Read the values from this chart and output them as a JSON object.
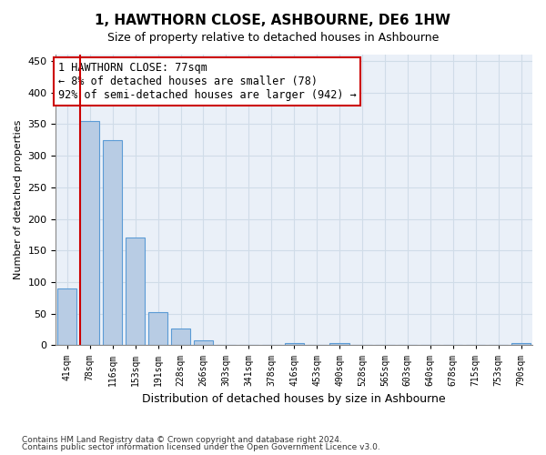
{
  "title": "1, HAWTHORN CLOSE, ASHBOURNE, DE6 1HW",
  "subtitle": "Size of property relative to detached houses in Ashbourne",
  "xlabel": "Distribution of detached houses by size in Ashbourne",
  "ylabel": "Number of detached properties",
  "footer1": "Contains HM Land Registry data © Crown copyright and database right 2024.",
  "footer2": "Contains public sector information licensed under the Open Government Licence v3.0.",
  "bins": [
    "41sqm",
    "78sqm",
    "116sqm",
    "153sqm",
    "191sqm",
    "228sqm",
    "266sqm",
    "303sqm",
    "341sqm",
    "378sqm",
    "416sqm",
    "453sqm",
    "490sqm",
    "528sqm",
    "565sqm",
    "603sqm",
    "640sqm",
    "678sqm",
    "715sqm",
    "753sqm",
    "790sqm"
  ],
  "values": [
    90,
    355,
    325,
    170,
    52,
    27,
    8,
    0,
    0,
    0,
    3,
    0,
    3,
    0,
    0,
    0,
    0,
    0,
    0,
    0,
    3
  ],
  "bar_color": "#b8cce4",
  "bar_edge_color": "#5b9bd5",
  "grid_color": "#d0dce8",
  "background_color": "#eaf0f8",
  "annotation_line1": "1 HAWTHORN CLOSE: 77sqm",
  "annotation_line2": "← 8% of detached houses are smaller (78)",
  "annotation_line3": "92% of semi-detached houses are larger (942) →",
  "annotation_box_color": "#ffffff",
  "annotation_border_color": "#cc0000",
  "vline_color": "#cc0000",
  "vline_x_index": 1,
  "ylim": [
    0,
    460
  ],
  "yticks": [
    0,
    50,
    100,
    150,
    200,
    250,
    300,
    350,
    400,
    450
  ]
}
